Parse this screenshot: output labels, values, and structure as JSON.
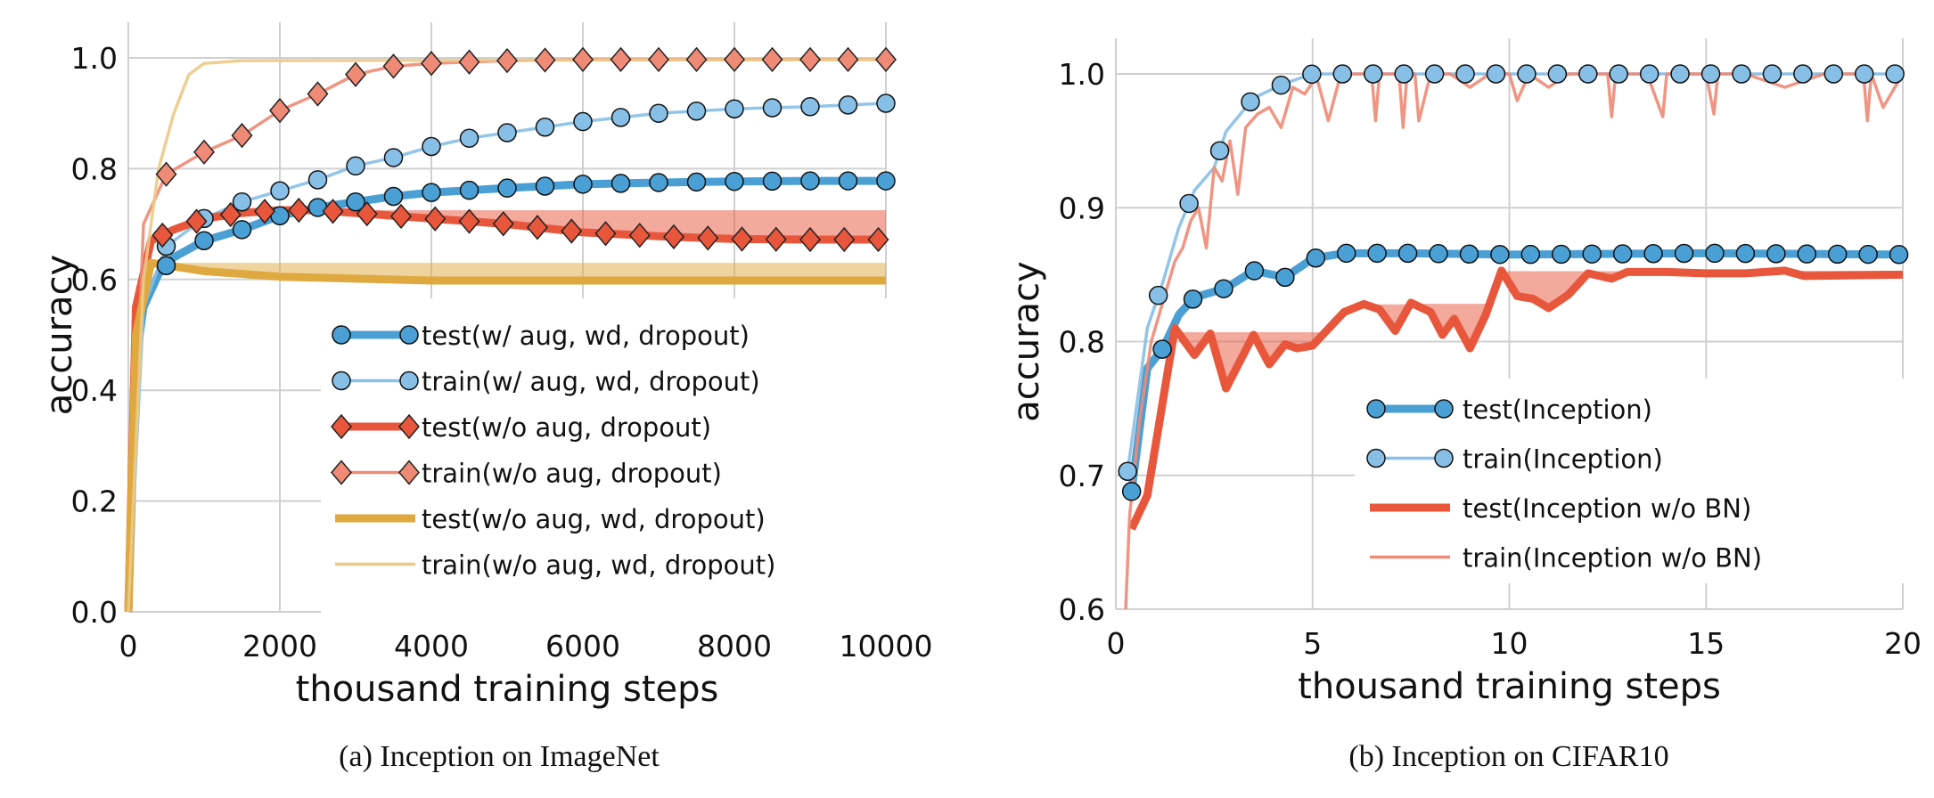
{
  "chart_data": [
    {
      "type": "line",
      "caption": "(a) Inception on ImageNet",
      "xlabel": "thousand training steps",
      "ylabel": "accuracy",
      "xlim": [
        0,
        10000
      ],
      "ylim": [
        0,
        1.0
      ],
      "xticks": [
        "0",
        "2000",
        "4000",
        "6000",
        "8000",
        "10000"
      ],
      "yticks": [
        "0.0",
        "0.2",
        "0.4",
        "0.6",
        "0.8",
        "1.0"
      ],
      "grid": true,
      "legend_position": "lower-right",
      "series": [
        {
          "name": "test(w/ aug, wd, dropout)",
          "color": "#4a9fd5",
          "width": "thick",
          "marker": "circle",
          "marker_every": 500,
          "x": [
            0,
            100,
            200,
            400,
            600,
            1000,
            1500,
            2000,
            2500,
            3000,
            3500,
            4000,
            5000,
            6000,
            7000,
            8000,
            9000,
            10000
          ],
          "y": [
            0,
            0.45,
            0.55,
            0.61,
            0.64,
            0.67,
            0.69,
            0.715,
            0.73,
            0.74,
            0.75,
            0.757,
            0.765,
            0.772,
            0.775,
            0.777,
            0.778,
            0.778
          ]
        },
        {
          "name": "train(w/ aug, wd, dropout)",
          "color": "#87bfe6",
          "width": "thin",
          "marker": "circle",
          "marker_every": 500,
          "x": [
            0,
            200,
            500,
            1000,
            1500,
            2000,
            2500,
            3000,
            3500,
            4000,
            4500,
            5000,
            6000,
            7000,
            8000,
            9000,
            10000
          ],
          "y": [
            0,
            0.55,
            0.66,
            0.71,
            0.74,
            0.76,
            0.78,
            0.805,
            0.82,
            0.84,
            0.855,
            0.865,
            0.885,
            0.9,
            0.908,
            0.912,
            0.918
          ]
        },
        {
          "name": "test(w/o aug, dropout)",
          "color": "#e8563c",
          "width": "thick",
          "marker": "diamond",
          "marker_every": 450,
          "band_to_max": true,
          "x": [
            0,
            100,
            300,
            600,
            1000,
            1500,
            2000,
            2500,
            3000,
            3500,
            4000,
            5000,
            6000,
            7000,
            8000,
            9000,
            10000
          ],
          "y": [
            0,
            0.55,
            0.67,
            0.69,
            0.71,
            0.72,
            0.725,
            0.725,
            0.72,
            0.715,
            0.71,
            0.7,
            0.685,
            0.678,
            0.673,
            0.672,
            0.672
          ]
        },
        {
          "name": "train(w/o aug, dropout)",
          "color": "#ee8a76",
          "width": "thin",
          "marker": "diamond",
          "marker_every": 500,
          "x": [
            0,
            200,
            500,
            1000,
            1500,
            2000,
            2500,
            3000,
            3500,
            4000,
            5000,
            6000,
            10000
          ],
          "y": [
            0,
            0.7,
            0.79,
            0.83,
            0.86,
            0.905,
            0.935,
            0.97,
            0.985,
            0.99,
            0.995,
            0.997,
            0.997
          ]
        },
        {
          "name": "test(w/o aug, wd, dropout)",
          "color": "#dfa940",
          "width": "thick",
          "marker": "none",
          "band_to_max": true,
          "x": [
            0,
            100,
            300,
            1000,
            2000,
            4000,
            10000
          ],
          "y": [
            0,
            0.5,
            0.63,
            0.615,
            0.605,
            0.598,
            0.598
          ]
        },
        {
          "name": "train(w/o aug, wd, dropout)",
          "color": "#ecca86",
          "width": "thin",
          "marker": "none",
          "x": [
            0,
            200,
            400,
            600,
            800,
            1000,
            1500,
            10000
          ],
          "y": [
            0,
            0.6,
            0.8,
            0.9,
            0.97,
            0.99,
            0.995,
            0.997
          ]
        }
      ]
    },
    {
      "type": "line",
      "caption": "(b) Inception on CIFAR10",
      "xlabel": "thousand training steps",
      "ylabel": "accuracy",
      "xlim": [
        0,
        20
      ],
      "ylim": [
        0.6,
        1.0
      ],
      "xticks": [
        "0",
        "5",
        "10",
        "15",
        "20"
      ],
      "yticks": [
        "0.6",
        "0.7",
        "0.8",
        "0.9",
        "1.0"
      ],
      "grid": true,
      "legend_position": "lower-right",
      "series": [
        {
          "name": "test(Inception)",
          "color": "#4a9fd5",
          "width": "thick",
          "marker": "circle",
          "marker_every": 0.78,
          "x": [
            0.4,
            0.8,
            1.2,
            1.6,
            2,
            2.8,
            3.5,
            4.3,
            5,
            5.8,
            6.6,
            7.4,
            10,
            15,
            20
          ],
          "y": [
            0.688,
            0.78,
            0.795,
            0.82,
            0.833,
            0.84,
            0.853,
            0.848,
            0.862,
            0.866,
            0.866,
            0.866,
            0.865,
            0.866,
            0.865
          ]
        },
        {
          "name": "train(Inception)",
          "color": "#87bfe6",
          "width": "thin",
          "marker": "circle",
          "marker_every": 0.78,
          "x": [
            0.3,
            0.8,
            1.2,
            1.6,
            2,
            2.5,
            2.8,
            3.5,
            4.3,
            5,
            20
          ],
          "y": [
            0.703,
            0.81,
            0.845,
            0.885,
            0.913,
            0.93,
            0.957,
            0.982,
            0.993,
            1.0,
            1.0
          ]
        },
        {
          "name": "test(Inception w/o BN)",
          "color": "#e8563c",
          "width": "thick",
          "marker": "none",
          "band_to_max": true,
          "x": [
            0.4,
            0.8,
            1.5,
            2,
            2.4,
            2.8,
            3.5,
            3.9,
            4.3,
            4.6,
            5,
            5.8,
            6.3,
            6.7,
            7.1,
            7.5,
            8,
            8.3,
            8.6,
            9,
            9.4,
            9.8,
            10.2,
            10.6,
            11,
            11.5,
            12,
            12.6,
            13,
            14,
            15,
            16,
            17,
            17.5,
            20
          ],
          "y": [
            0.66,
            0.685,
            0.81,
            0.79,
            0.806,
            0.765,
            0.805,
            0.783,
            0.798,
            0.795,
            0.797,
            0.822,
            0.828,
            0.824,
            0.808,
            0.829,
            0.822,
            0.805,
            0.817,
            0.795,
            0.82,
            0.853,
            0.834,
            0.832,
            0.825,
            0.835,
            0.851,
            0.847,
            0.852,
            0.852,
            0.851,
            0.851,
            0.853,
            0.849,
            0.85
          ]
        },
        {
          "name": "train(Inception w/o BN)",
          "color": "#ee8a76",
          "width": "thin",
          "marker": "none",
          "x": [
            0.25,
            0.35,
            0.6,
            0.9,
            1.1,
            1.3,
            1.5,
            1.7,
            1.9,
            2.1,
            2.3,
            2.5,
            2.7,
            2.9,
            3.1,
            3.3,
            3.6,
            3.9,
            4.2,
            4.5,
            4.8,
            5.1,
            5.4,
            5.7,
            6,
            6.5,
            6.6,
            6.7,
            7.2,
            7.3,
            7.4,
            7.6,
            7.7,
            8,
            8.5,
            9,
            9.5,
            10,
            10.2,
            10.5,
            11,
            11.5,
            12,
            12.5,
            12.6,
            12.7,
            13,
            13.5,
            13.9,
            14,
            14.1,
            14.5,
            15,
            15.2,
            15.3,
            15.5,
            16,
            17,
            18,
            19,
            19.1,
            19.2,
            19.5,
            20
          ],
          "y": [
            0.6,
            0.67,
            0.74,
            0.8,
            0.82,
            0.84,
            0.86,
            0.87,
            0.89,
            0.9,
            0.87,
            0.93,
            0.92,
            0.95,
            0.91,
            0.96,
            0.97,
            0.975,
            0.96,
            0.99,
            0.985,
            0.998,
            0.965,
            0.998,
            1.0,
            1.0,
            0.965,
            1.0,
            1.0,
            0.96,
            1.0,
            1.0,
            0.965,
            1.0,
            1.0,
            0.99,
            1.0,
            1.0,
            0.98,
            1.0,
            0.99,
            1.0,
            1.0,
            1.0,
            0.968,
            1.0,
            1.0,
            1.0,
            0.968,
            1.0,
            1.0,
            1.0,
            1.0,
            0.97,
            1.0,
            1.0,
            1.0,
            0.99,
            1.0,
            1.0,
            0.965,
            1.0,
            0.975,
            1.0
          ]
        }
      ]
    }
  ]
}
